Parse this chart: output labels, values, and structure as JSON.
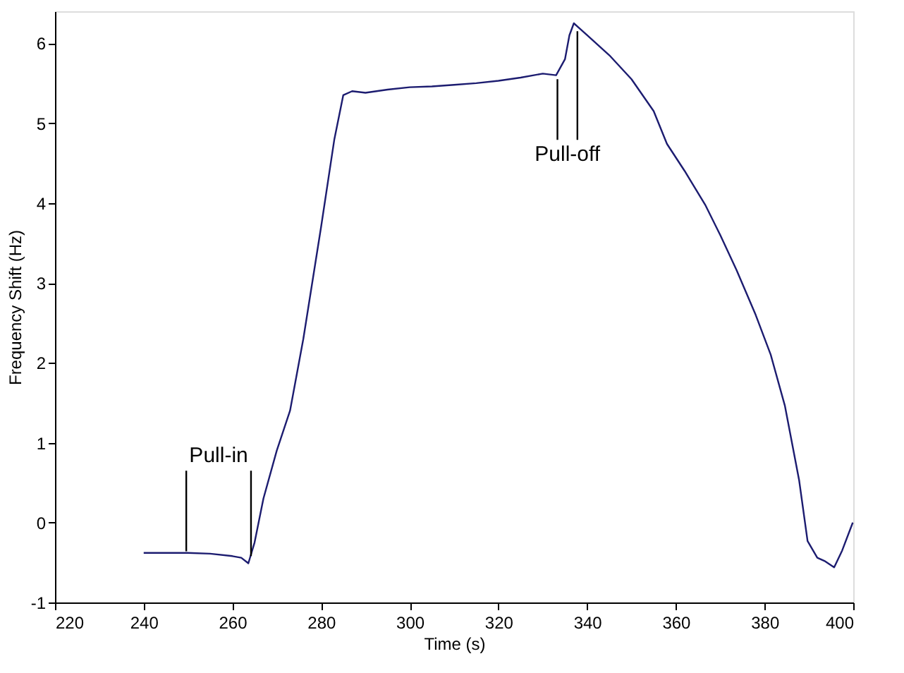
{
  "chart_data": {
    "type": "line",
    "xlabel": "Time (s)",
    "ylabel": "Frequency Shift (Hz)",
    "xlim": [
      220,
      400
    ],
    "xticks": [
      220,
      240,
      260,
      280,
      300,
      320,
      340,
      360,
      380,
      400
    ],
    "ylim": [
      -1,
      6.4
    ],
    "yticks": [
      -1,
      0,
      1,
      2,
      3,
      4,
      5,
      6
    ],
    "grid": false,
    "marker": "none",
    "line_style": "solid",
    "series": [
      {
        "color": "#1c1c70",
        "x": [
          240,
          245,
          250,
          255,
          260,
          262,
          263.6,
          265,
          267,
          270,
          273,
          276,
          280,
          283,
          285,
          287,
          290,
          295,
          300,
          305,
          310,
          315,
          320,
          325,
          330,
          333,
          335,
          336,
          337,
          338,
          340,
          345,
          350,
          355,
          358,
          362,
          366.6,
          370,
          373.7,
          378,
          381.4,
          384.6,
          387.8,
          389.7,
          391.9,
          393.5,
          395.7,
          397.5,
          399.9
        ],
        "values": [
          -0.38,
          -0.38,
          -0.38,
          -0.39,
          -0.42,
          -0.44,
          -0.51,
          -0.25,
          0.3,
          0.9,
          1.4,
          2.3,
          3.7,
          4.8,
          5.35,
          5.4,
          5.38,
          5.42,
          5.45,
          5.46,
          5.48,
          5.5,
          5.53,
          5.57,
          5.62,
          5.6,
          5.8,
          6.1,
          6.25,
          6.2,
          6.1,
          5.85,
          5.55,
          5.15,
          4.74,
          4.4,
          3.98,
          3.6,
          3.16,
          2.6,
          2.1,
          1.46,
          0.53,
          -0.23,
          -0.44,
          -0.48,
          -0.56,
          -0.35,
          0.0
        ]
      },
      {
        "type": "line",
        "color": "#000000",
        "x": [
          249.6,
          249.6,
          257,
          264.2,
          264.2,
          300,
          333.3,
          333.3,
          335,
          337.8,
          337.8
        ],
        "values": [
          -0.36,
          0.65,
          null,
          -0.42,
          0.65,
          null,
          5.55,
          4.79,
          null,
          6.15,
          4.79
        ]
      }
    ],
    "annotations": [
      "Pull-in",
      "Pull-off"
    ]
  }
}
